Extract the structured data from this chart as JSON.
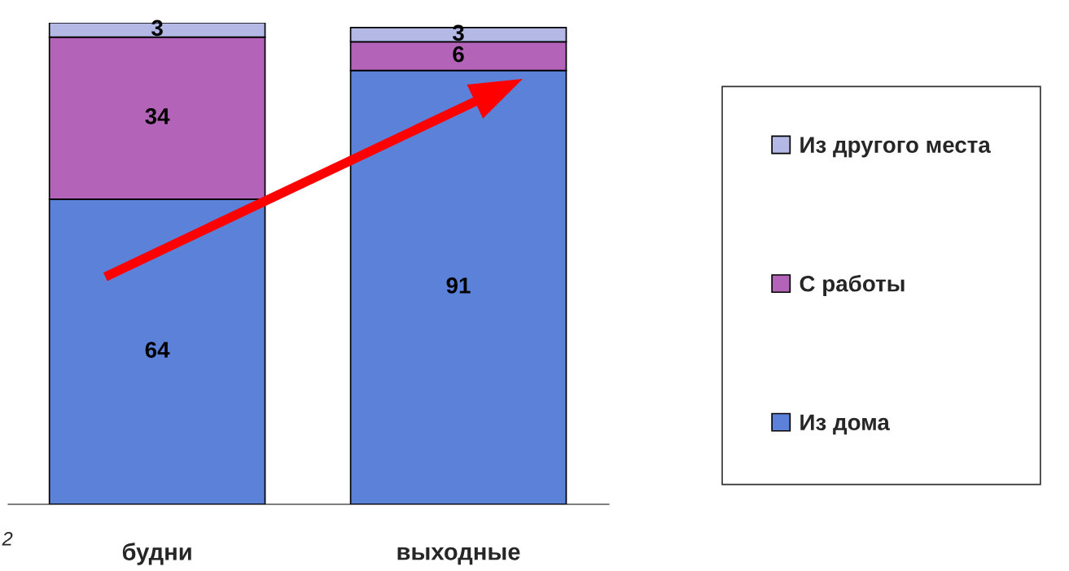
{
  "chart_data": {
    "type": "bar",
    "stacked": true,
    "categories": [
      "будни",
      "выходные"
    ],
    "series": [
      {
        "name": "Из дома",
        "color": "#5b82d8",
        "values": [
          64,
          91
        ]
      },
      {
        "name": "С работы",
        "color": "#b464b8",
        "values": [
          34,
          6
        ]
      },
      {
        "name": "Из другого места",
        "color": "#b4b8e4",
        "values": [
          3,
          3
        ]
      }
    ],
    "data_labels": true,
    "legend": "right",
    "grid": false,
    "annotations": [
      "2"
    ]
  }
}
